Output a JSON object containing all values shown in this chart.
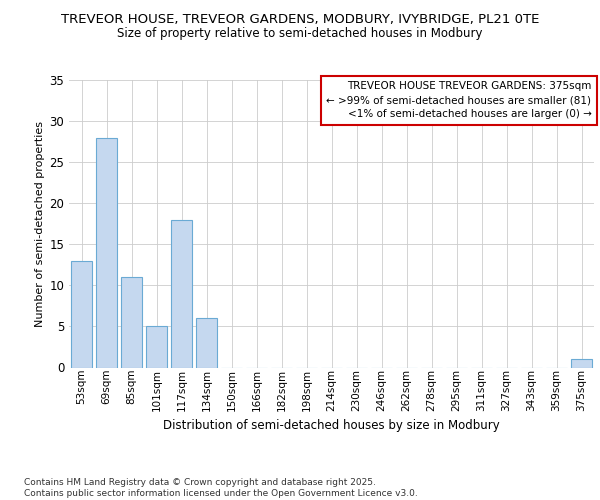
{
  "title_line1": "TREVEOR HOUSE, TREVEOR GARDENS, MODBURY, IVYBRIDGE, PL21 0TE",
  "title_line2": "Size of property relative to semi-detached houses in Modbury",
  "xlabel": "Distribution of semi-detached houses by size in Modbury",
  "ylabel": "Number of semi-detached properties",
  "categories": [
    "53sqm",
    "69sqm",
    "85sqm",
    "101sqm",
    "117sqm",
    "134sqm",
    "150sqm",
    "166sqm",
    "182sqm",
    "198sqm",
    "214sqm",
    "230sqm",
    "246sqm",
    "262sqm",
    "278sqm",
    "295sqm",
    "311sqm",
    "327sqm",
    "343sqm",
    "359sqm",
    "375sqm"
  ],
  "values": [
    13,
    28,
    11,
    5,
    18,
    6,
    0,
    0,
    0,
    0,
    0,
    0,
    0,
    0,
    0,
    0,
    0,
    0,
    0,
    0,
    1
  ],
  "bar_color": "#c5d8ef",
  "bar_edge_color": "#6aaad4",
  "annotation_box_text_line1": "TREVEOR HOUSE TREVEOR GARDENS: 375sqm",
  "annotation_box_text_line2": "← >99% of semi-detached houses are smaller (81)",
  "annotation_box_text_line3": "<1% of semi-detached houses are larger (0) →",
  "annotation_box_edge_color": "#cc0000",
  "ylim": [
    0,
    35
  ],
  "yticks": [
    0,
    5,
    10,
    15,
    20,
    25,
    30,
    35
  ],
  "footer_line1": "Contains HM Land Registry data © Crown copyright and database right 2025.",
  "footer_line2": "Contains public sector information licensed under the Open Government Licence v3.0.",
  "bg_color": "#ffffff",
  "grid_color": "#cccccc"
}
